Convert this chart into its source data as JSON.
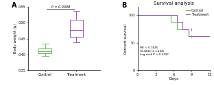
{
  "panel_A": {
    "label": "A",
    "ylabel": "Body weight (g)",
    "ylim": [
      0.35,
      0.55
    ],
    "yticks": [
      0.35,
      0.4,
      0.45,
      0.5,
      0.55
    ],
    "xtick_labels": [
      "Control",
      "Treatment"
    ],
    "pvalue_text": "P = 0.0098",
    "control_color": "#6abf5e",
    "treatment_color": "#9b59b6",
    "control_box": {
      "median": 0.41,
      "q1": 0.405,
      "q3": 0.42,
      "whislo": 0.395,
      "whishi": 0.435
    },
    "treatment_box": {
      "median": 0.478,
      "q1": 0.455,
      "q3": 0.51,
      "whislo": 0.438,
      "whishi": 0.538
    }
  },
  "panel_B": {
    "label": "B",
    "title": "Survival analysis",
    "ylabel": "Percent survival",
    "xlabel": "Days",
    "ylim": [
      0,
      115
    ],
    "xlim": [
      0,
      12
    ],
    "yticks": [
      0,
      50,
      100
    ],
    "xticks": [
      0,
      3,
      6,
      9,
      12
    ],
    "annotation": "HR = 0.7826\n(0.4242 to 1.444)\nLog-rank P = 0.4197",
    "control_color": "#6abf5e",
    "treatment_color": "#9b59b6",
    "control_x": [
      0,
      6,
      6,
      7,
      7,
      9,
      9,
      12
    ],
    "control_y": [
      100,
      100,
      87.5,
      87.5,
      75,
      75,
      62.5,
      62.5
    ],
    "treatment_x": [
      0,
      6,
      6,
      7,
      7,
      8,
      8,
      9,
      9,
      12
    ],
    "treatment_y": [
      100,
      100,
      87.5,
      87.5,
      75,
      75,
      62.5,
      62.5,
      75,
      75
    ],
    "legend_labels": [
      "Control",
      "Treatment"
    ]
  },
  "background_color": "#ffffff",
  "figure_width": 3.12,
  "figure_height": 1.26,
  "dpi": 100
}
